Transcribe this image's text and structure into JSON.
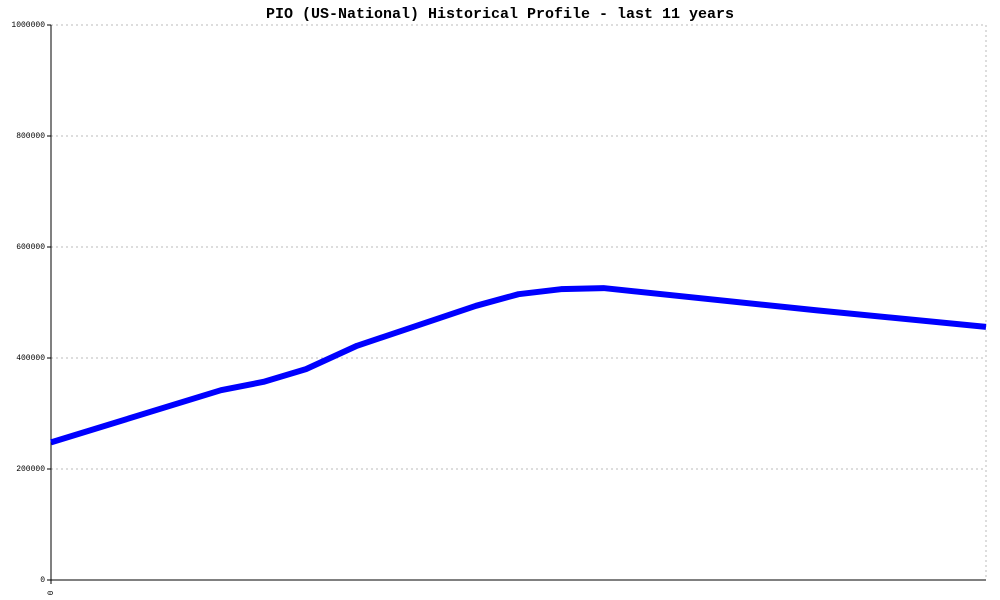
{
  "chart_data": {
    "type": "line",
    "title": "PIO (US-National) Historical Profile - last 11 years",
    "x": [
      0,
      2,
      2.5,
      3,
      3.6,
      5,
      5.5,
      6,
      6.5,
      9,
      11
    ],
    "xlim": [
      0,
      11
    ],
    "xticks": [
      0
    ],
    "series": [
      {
        "color": "#0000ff",
        "values": [
          248000,
          342000,
          357000,
          380000,
          422000,
          494000,
          515000,
          524000,
          526000,
          486000,
          456000
        ]
      }
    ],
    "ylim": [
      0,
      1000000
    ],
    "yticks": [
      0,
      200000,
      400000,
      600000,
      800000,
      1000000
    ],
    "grid": true
  }
}
